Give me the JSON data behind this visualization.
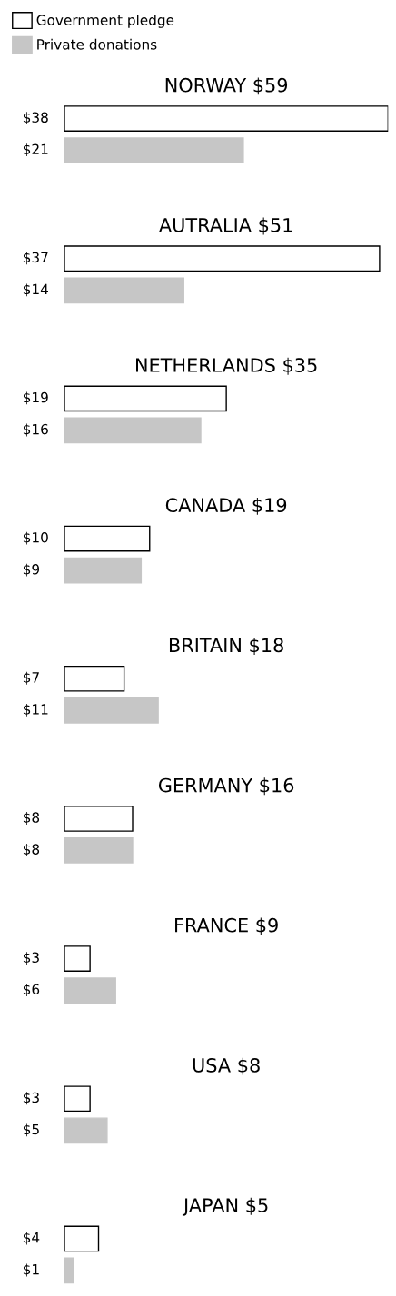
{
  "chart_data": {
    "type": "bar",
    "orientation": "horizontal",
    "legend": "top left",
    "categories": [
      "NORWAY $59",
      "AUTRALIA $51",
      "NETHERLANDS $35",
      "CANADA $19",
      "BRITAIN $18",
      "GERMANY $16",
      "FRANCE $9",
      "USA $8",
      "JAPAN $5"
    ],
    "series": [
      {
        "name": "Government pledge",
        "color": "#ffffff",
        "values": [
          38,
          37,
          19,
          10,
          7,
          8,
          3,
          3,
          4
        ],
        "value_labels": [
          "$38",
          "$37",
          "$19",
          "$10",
          "$7",
          "$8",
          "$3",
          "$3",
          "$4"
        ]
      },
      {
        "name": "Private donations",
        "color": "#c6c6c6",
        "values": [
          21,
          14,
          16,
          9,
          11,
          8,
          6,
          5,
          1
        ],
        "value_labels": [
          "$21",
          "$14",
          "$16",
          "$9",
          "$11",
          "$8",
          "$6",
          "$5",
          "$1"
        ]
      }
    ]
  }
}
